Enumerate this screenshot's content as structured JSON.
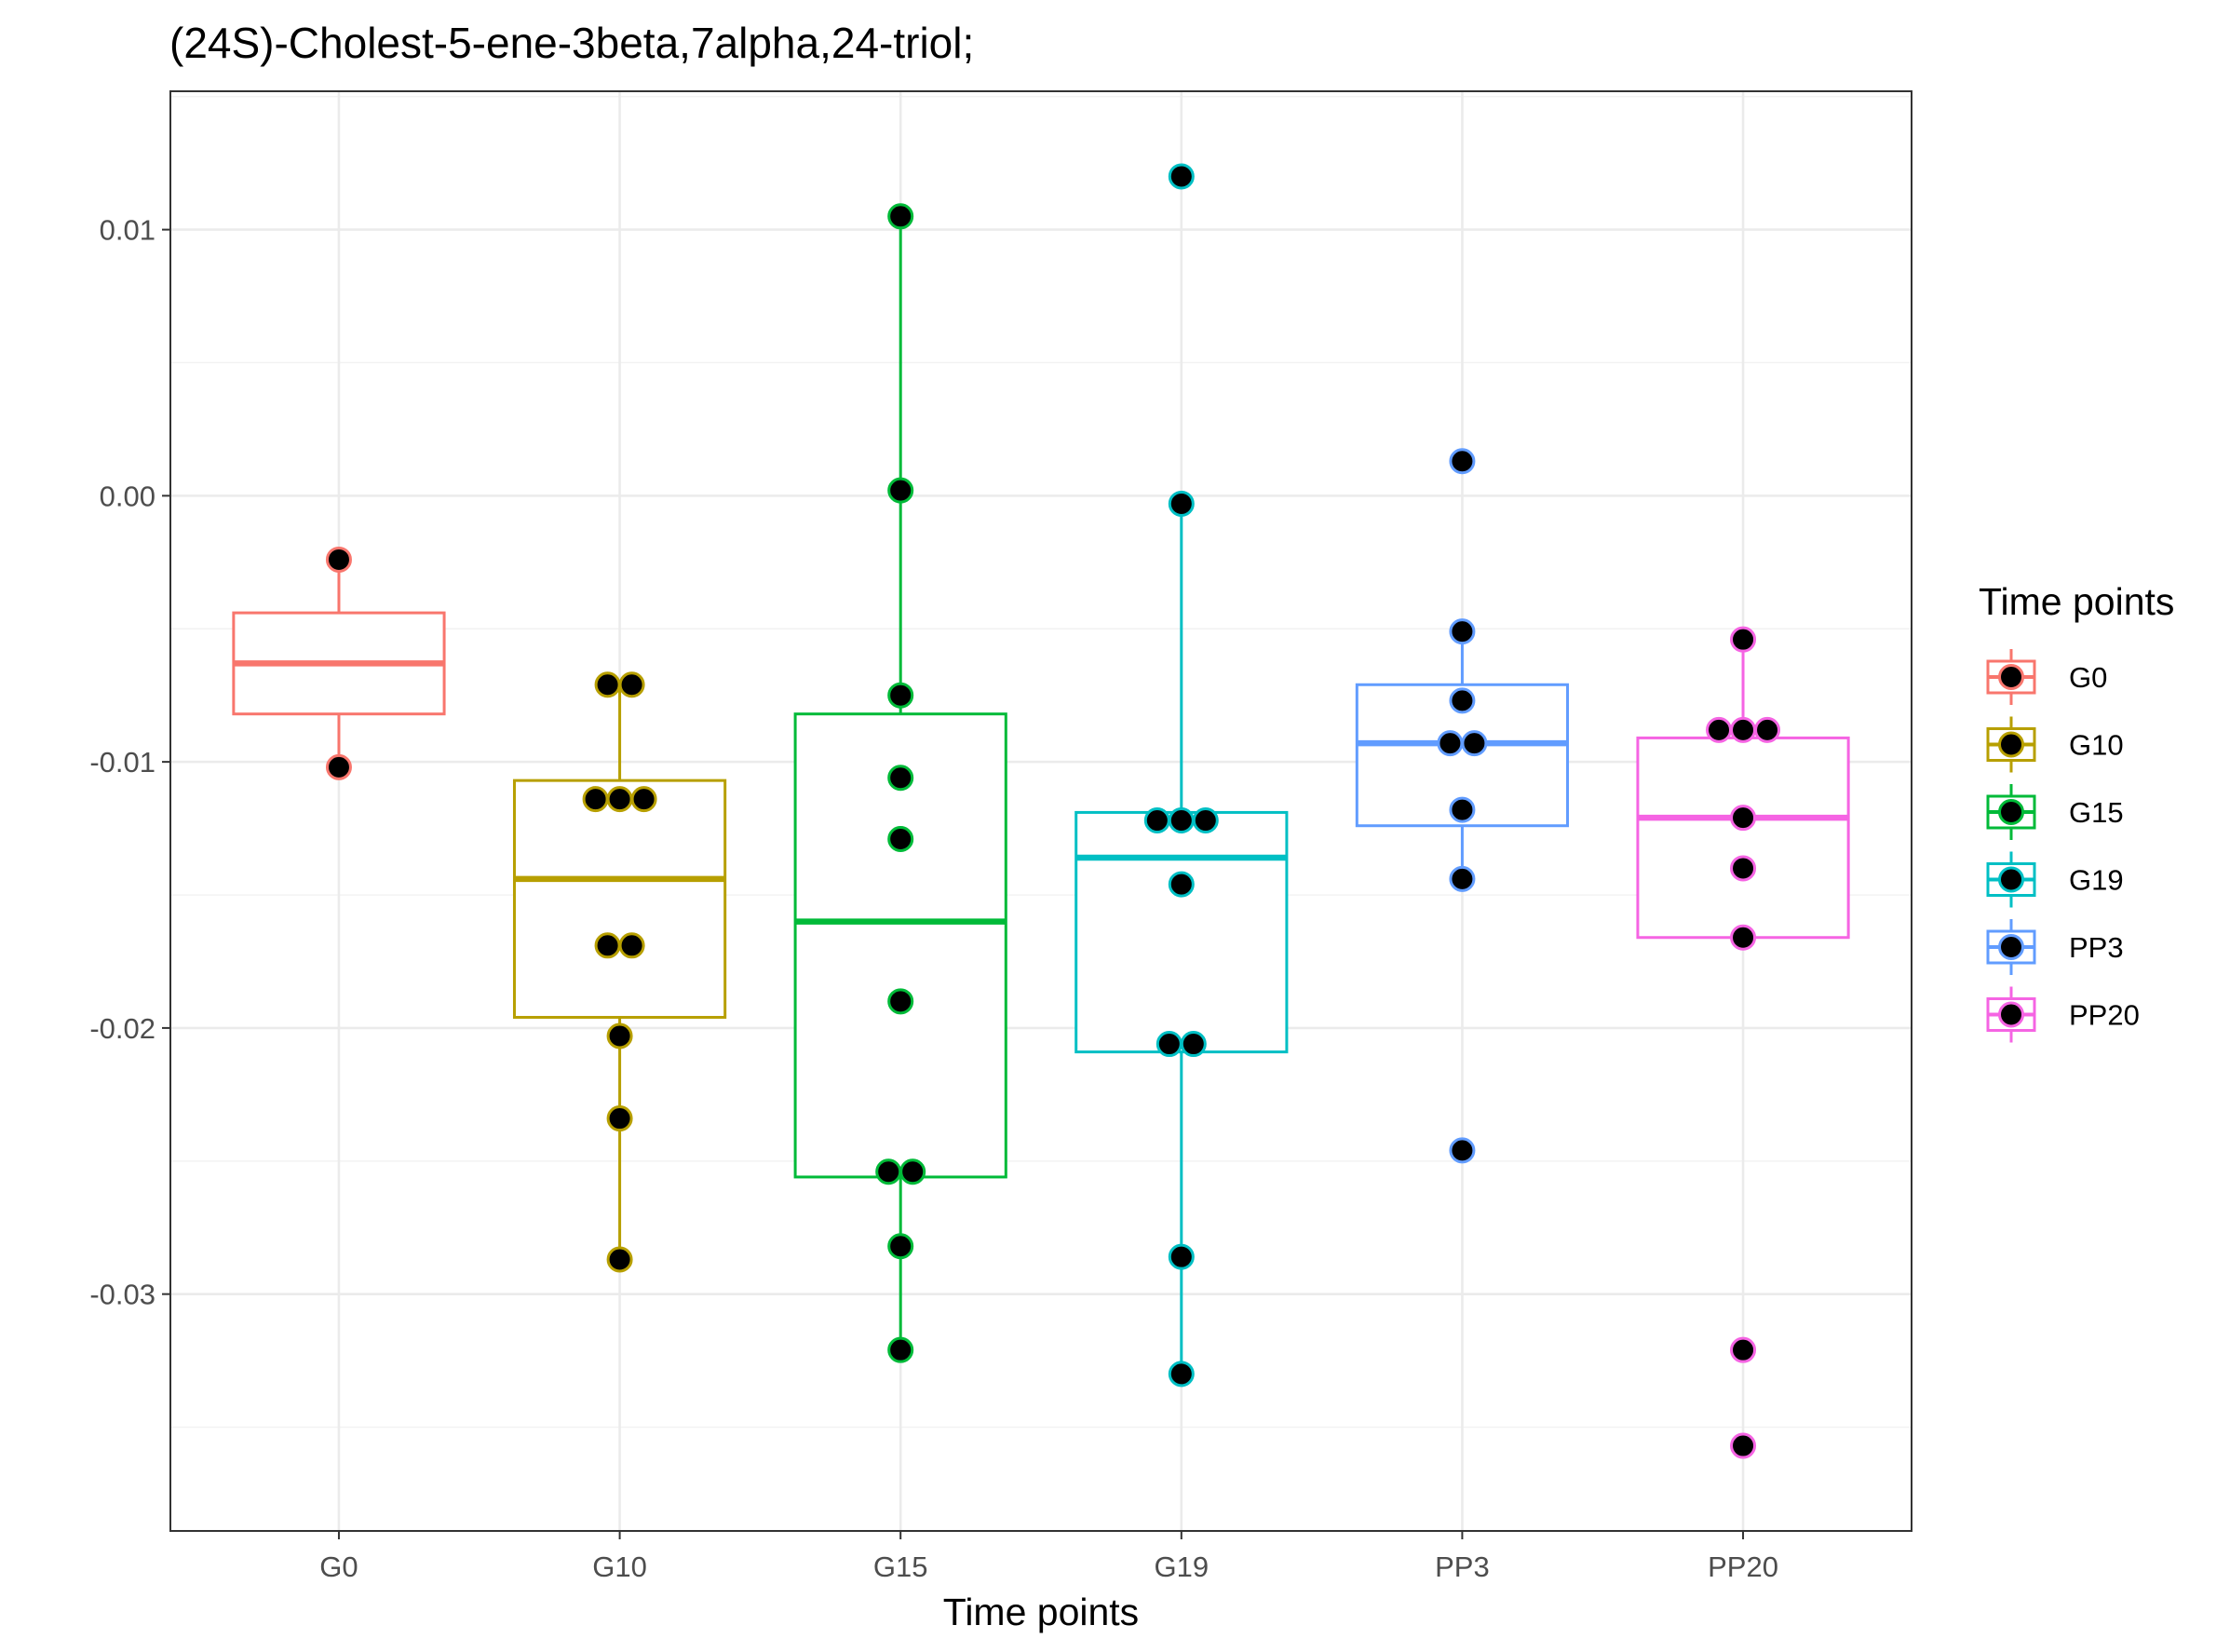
{
  "chart_data": {
    "type": "boxplot",
    "title": "(24S)-Cholest-5-ene-3beta,7alpha,24-triol;",
    "xlabel": "Time points",
    "ylabel": "",
    "ylim": [
      -0.0389,
      0.0152
    ],
    "y_ticks": [
      0.01,
      0.0,
      -0.01,
      -0.02,
      -0.03
    ],
    "y_tick_labels": [
      "0.01",
      "0.00",
      "-0.01",
      "-0.02",
      "-0.03"
    ],
    "grid": true,
    "legend": {
      "title": "Time points",
      "position": "right"
    },
    "categories": [
      "G0",
      "G10",
      "G15",
      "G19",
      "PP3",
      "PP20"
    ],
    "colors": [
      "#F8766D",
      "#B79F00",
      "#00BA38",
      "#00BFC4",
      "#619CFF",
      "#F564E3"
    ],
    "point_color": "#000000",
    "series": [
      {
        "name": "G0",
        "box": {
          "q1": -0.0082,
          "median": -0.0063,
          "q3": -0.0044,
          "whisker_low": -0.0102,
          "whisker_high": -0.0024
        },
        "points": [
          -0.0024,
          -0.0102
        ]
      },
      {
        "name": "G10",
        "box": {
          "q1": -0.0196,
          "median": -0.0144,
          "q3": -0.0107,
          "whisker_low": -0.0287,
          "whisker_high": -0.0071
        },
        "points": [
          -0.0071,
          -0.0071,
          -0.0114,
          -0.0114,
          -0.0114,
          -0.0169,
          -0.0169,
          -0.0203,
          -0.0234,
          -0.0287
        ]
      },
      {
        "name": "G15",
        "box": {
          "q1": -0.0256,
          "median": -0.016,
          "q3": -0.0082,
          "whisker_low": -0.0321,
          "whisker_high": 0.0105
        },
        "points": [
          0.0105,
          0.0002,
          -0.0075,
          -0.0106,
          -0.0129,
          -0.019,
          -0.0254,
          -0.0254,
          -0.0282,
          -0.0321
        ]
      },
      {
        "name": "G19",
        "box": {
          "q1": -0.0209,
          "median": -0.0136,
          "q3": -0.0119,
          "whisker_low": -0.033,
          "whisker_high": -0.0003
        },
        "points": [
          0.012,
          -0.0003,
          -0.0122,
          -0.0122,
          -0.0122,
          -0.0146,
          -0.0206,
          -0.0206,
          -0.0286,
          -0.033
        ]
      },
      {
        "name": "PP3",
        "box": {
          "q1": -0.0124,
          "median": -0.0093,
          "q3": -0.0071,
          "whisker_low": -0.0144,
          "whisker_high": -0.0051
        },
        "points": [
          0.0013,
          -0.0051,
          -0.0077,
          -0.0093,
          -0.0093,
          -0.0118,
          -0.0144,
          -0.0246
        ]
      },
      {
        "name": "PP20",
        "box": {
          "q1": -0.0166,
          "median": -0.0121,
          "q3": -0.0091,
          "whisker_low": -0.0166,
          "whisker_high": -0.0054
        },
        "points": [
          -0.0054,
          -0.0088,
          -0.0088,
          -0.0088,
          -0.0121,
          -0.014,
          -0.0166,
          -0.0321,
          -0.0357
        ]
      }
    ]
  }
}
